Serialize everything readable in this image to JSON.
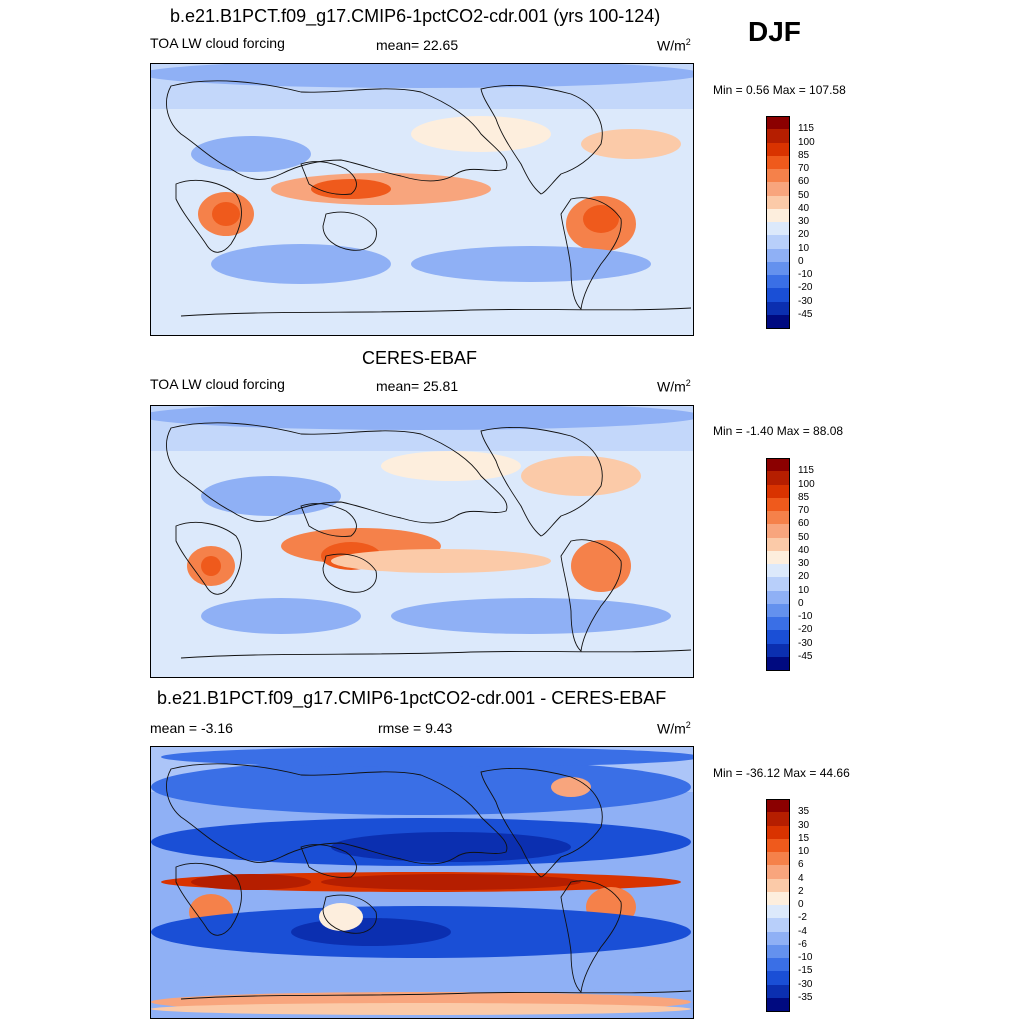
{
  "season": "DJF",
  "panels": [
    {
      "id": "model",
      "title": "b.e21.B1PCT.f09_g17.CMIP6-1pctCO2-cdr.001 (yrs 100-124)",
      "left_label": "TOA LW cloud forcing",
      "center_label": "mean=  22.65",
      "units": "W/m",
      "units_sup": "2",
      "minmax": "Min =   0.56 Max = 107.58",
      "levels": [
        "115",
        "100",
        "85",
        "70",
        "60",
        "50",
        "40",
        "30",
        "20",
        "10",
        "0",
        "-10",
        "-20",
        "-30",
        "-45"
      ]
    },
    {
      "id": "obs",
      "title": "CERES-EBAF",
      "left_label": "TOA LW cloud forcing",
      "center_label": "mean=  25.81",
      "units": "W/m",
      "units_sup": "2",
      "minmax": "Min =  -1.40 Max =  88.08",
      "levels": [
        "115",
        "100",
        "85",
        "70",
        "60",
        "50",
        "40",
        "30",
        "20",
        "10",
        "0",
        "-10",
        "-20",
        "-30",
        "-45"
      ]
    },
    {
      "id": "diff",
      "title": "b.e21.B1PCT.f09_g17.CMIP6-1pctCO2-cdr.001 - CERES-EBAF",
      "left_label": "mean =  -3.16",
      "center_label": "rmse =   9.43",
      "units": "W/m",
      "units_sup": "2",
      "minmax": "Min = -36.12 Max =  44.66",
      "levels": [
        "35",
        "30",
        "15",
        "10",
        "6",
        "4",
        "2",
        "0",
        "-2",
        "-4",
        "-6",
        "-10",
        "-15",
        "-30",
        "-35"
      ]
    }
  ],
  "colors": {
    "scale": [
      "#8b0000",
      "#b51e00",
      "#d93300",
      "#ef5a1c",
      "#f5814a",
      "#f8a57d",
      "#fbcaa8",
      "#fdeedd",
      "#dce9fb",
      "#b8cffa",
      "#8fb0f5",
      "#6491ee",
      "#3a6fe6",
      "#1a4fd6",
      "#0b2fb0",
      "#000a80"
    ]
  }
}
